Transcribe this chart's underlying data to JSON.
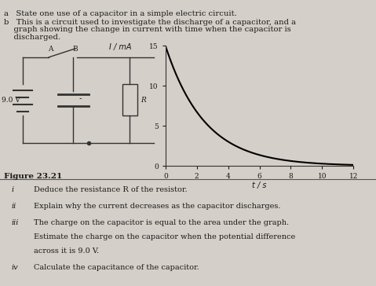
{
  "bg_color": "#d4cfc8",
  "text_color": "#1a1a1a",
  "title_a": "a   State one use of a capacitor in a simple electric circuit.",
  "title_b_line1": "b   This is a circuit used to investigate the discharge of a capacitor, and a",
  "title_b_line2": "    graph showing the change in current with time when the capacitor is",
  "title_b_line3": "    discharged.",
  "figure_label": "Figure 23.21",
  "graph_xlabel": "t / s",
  "graph_ylabel": "I / mA",
  "graph_yticks": [
    0,
    5,
    10,
    15
  ],
  "graph_xticks": [
    0,
    2,
    4,
    6,
    8,
    10,
    12
  ],
  "graph_xlim": [
    0,
    12
  ],
  "graph_ylim": [
    0,
    15
  ],
  "decay_I0": 15,
  "decay_tau": 2.5
}
